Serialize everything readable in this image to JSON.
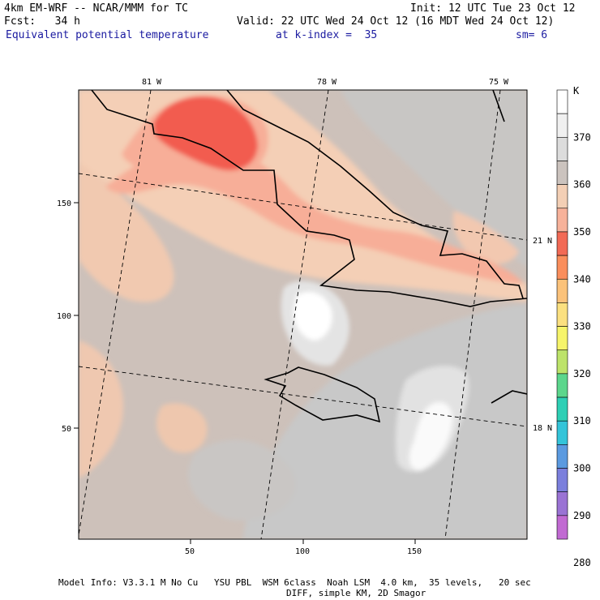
{
  "header": {
    "model": "4km EM-WRF -- NCAR/MMM for TC",
    "init": "Init: 12 UTC Tue 23 Oct 12",
    "forecast": "Fcst:   34 h",
    "valid": "Valid: 22 UTC Wed 24 Oct 12 (16 MDT Wed 24 Oct 12)",
    "field": "Equivalent potential temperature",
    "level": "at k-index =  35",
    "smoothing": "sm= 6"
  },
  "map": {
    "lon_labels": [
      "81 W",
      "78 W",
      "75 W"
    ],
    "lat_labels": [
      "21 N",
      "18 N"
    ],
    "x_ticks": [
      "50",
      "100",
      "150"
    ],
    "y_ticks": [
      "150",
      "100",
      "50"
    ]
  },
  "colorbar": {
    "unit": "K",
    "labels": [
      "370",
      "360",
      "350",
      "340",
      "330",
      "320",
      "310",
      "300",
      "290",
      "280"
    ],
    "colors": [
      "#ffffff",
      "#f0f0f0",
      "#dcdcdc",
      "#cbc3be",
      "#f3cfb5",
      "#f7b29a",
      "#f26a55",
      "#fa8e5c",
      "#fbc27a",
      "#fbe080",
      "#f6f46a",
      "#bde36a",
      "#5cd68c",
      "#2ecfb5",
      "#34c4d9",
      "#5b9ae0",
      "#7b7fdc",
      "#9a73d4",
      "#c16ad2"
    ]
  },
  "footer": {
    "line1": "Model Info: V3.3.1 M No Cu   YSU PBL  WSM 6class  Noah LSM  4.0 km,  35 levels,   20 sec",
    "line2": "DIFF, simple KM, 2D Smagor"
  }
}
